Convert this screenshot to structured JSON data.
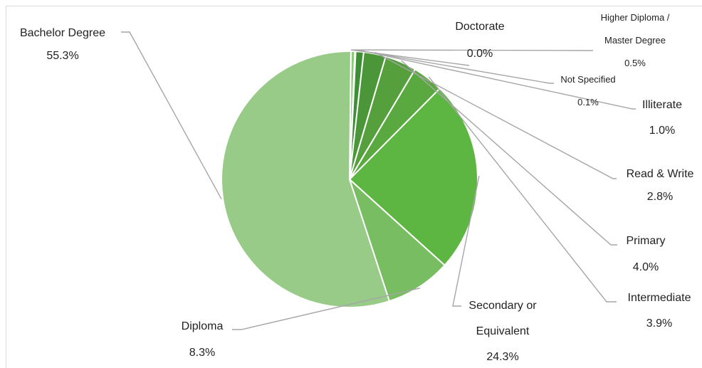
{
  "chart_data": {
    "type": "pie",
    "title": "",
    "start": "Doctorate",
    "direction": "clockwise",
    "slices": [
      {
        "name": "Doctorate",
        "value": 0.0,
        "label": "0.0%",
        "color": "#4f9e3f",
        "text_size": "normal"
      },
      {
        "name": "Higher Diploma / Master Degree",
        "lines": [
          "Higher Diploma /",
          "Master Degree"
        ],
        "value": 0.5,
        "label": "0.5%",
        "color": "#8cc97b",
        "text_size": "small"
      },
      {
        "name": "Not Specified",
        "lines": [
          "Not Specified"
        ],
        "value": 0.1,
        "label": "0.1%",
        "color": "#2f7a2f",
        "text_size": "small"
      },
      {
        "name": "Illiterate",
        "lines": [
          "Illiterate"
        ],
        "value": 1.0,
        "label": "1.0%",
        "color": "#3e8e35",
        "text_size": "normal"
      },
      {
        "name": "Read & Write",
        "lines": [
          "Read & Write"
        ],
        "value": 2.8,
        "label": "2.8%",
        "color": "#4a9638",
        "text_size": "normal"
      },
      {
        "name": "Primary",
        "lines": [
          "Primary"
        ],
        "value": 4.0,
        "label": "4.0%",
        "color": "#559f3c",
        "text_size": "normal"
      },
      {
        "name": "Intermediate",
        "lines": [
          "Intermediate"
        ],
        "value": 3.9,
        "label": "3.9%",
        "color": "#5aa840",
        "text_size": "normal"
      },
      {
        "name": "Secondary or Equivalent",
        "lines": [
          "Secondary or",
          "Equivalent"
        ],
        "value": 24.3,
        "label": "24.3%",
        "color": "#5db542",
        "text_size": "normal"
      },
      {
        "name": "Diploma",
        "lines": [
          "Diploma"
        ],
        "value": 8.3,
        "label": "8.3%",
        "color": "#78bd62",
        "text_size": "normal"
      },
      {
        "name": "Bachelor Degree",
        "lines": [
          "Bachelor Degree"
        ],
        "value": 55.3,
        "label": "55.3%",
        "color": "#97cb87",
        "text_size": "normal"
      }
    ]
  }
}
